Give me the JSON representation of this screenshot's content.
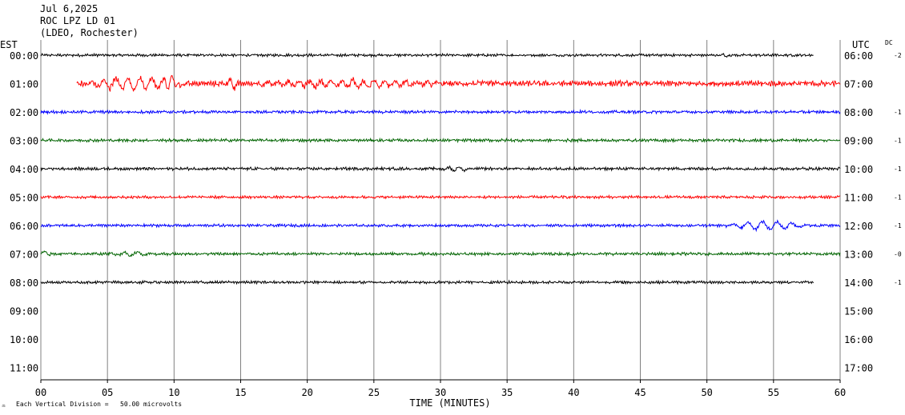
{
  "header": {
    "date": "Jul 6,2025",
    "station": "ROC LPZ LD 01",
    "network": "(LDEO, Rochester)"
  },
  "left_tz": "EST",
  "right_tz": "UTC",
  "dc_label": "DC",
  "footer": {
    "note": "Each Vertical Division =   50.00 microvolts",
    "mark": "♒"
  },
  "colors": [
    "#000000",
    "#ff0000",
    "#0000ff",
    "#006400"
  ],
  "chart_data": {
    "type": "line",
    "title": "",
    "xlabel": "TIME (MINUTES)",
    "xlim": [
      0,
      60
    ],
    "x_ticks": [
      "00",
      "05",
      "10",
      "15",
      "20",
      "25",
      "30",
      "35",
      "40",
      "45",
      "50",
      "55",
      "60"
    ],
    "grid": true,
    "rows": [
      {
        "est": "00:00",
        "utc": "06:00",
        "dc": "-2",
        "color": "#000000",
        "start_min": 0,
        "end_min": 58,
        "amplitude": 1.2,
        "events": [
          {
            "t0": 51,
            "t1": 52,
            "amp": 2.5,
            "period": 0.3
          }
        ]
      },
      {
        "est": "01:00",
        "utc": "07:00",
        "dc": "",
        "color": "#ff0000",
        "start_min": 2.7,
        "end_min": 60,
        "amplitude": 2.5,
        "events": [
          {
            "t0": 2.7,
            "t1": 14.5,
            "amp": 9,
            "period": 0.45
          },
          {
            "t0": 9.3,
            "t1": 10.7,
            "amp": 16,
            "period": 0.4
          },
          {
            "t0": 14,
            "t1": 15,
            "amp": 11,
            "period": 0.35
          },
          {
            "t0": 15,
            "t1": 36,
            "amp": 5,
            "period": 0.4
          }
        ]
      },
      {
        "est": "02:00",
        "utc": "08:00",
        "dc": "-1",
        "color": "#0000ff",
        "start_min": 0,
        "end_min": 60,
        "amplitude": 1.3,
        "events": []
      },
      {
        "est": "03:00",
        "utc": "09:00",
        "dc": "-1",
        "color": "#006400",
        "start_min": 0,
        "end_min": 60,
        "amplitude": 1.3,
        "events": []
      },
      {
        "est": "04:00",
        "utc": "10:00",
        "dc": "-1",
        "color": "#000000",
        "start_min": 0,
        "end_min": 60,
        "amplitude": 1.3,
        "events": [
          {
            "t0": 30,
            "t1": 33,
            "amp": 3,
            "period": 0.4
          }
        ]
      },
      {
        "est": "05:00",
        "utc": "11:00",
        "dc": "-1",
        "color": "#ff0000",
        "start_min": 0,
        "end_min": 60,
        "amplitude": 1.2,
        "events": []
      },
      {
        "est": "06:00",
        "utc": "12:00",
        "dc": "-1",
        "color": "#0000ff",
        "start_min": 0,
        "end_min": 60,
        "amplitude": 1.2,
        "events": [
          {
            "t0": 51,
            "t1": 60,
            "amp": 6,
            "period": 0.55
          }
        ]
      },
      {
        "est": "07:00",
        "utc": "13:00",
        "dc": "-0",
        "color": "#006400",
        "start_min": 0,
        "end_min": 60,
        "amplitude": 1.3,
        "events": [
          {
            "t0": 0,
            "t1": 1,
            "amp": 5,
            "period": 0.5
          },
          {
            "t0": 5,
            "t1": 10,
            "amp": 2.8,
            "period": 0.5
          }
        ]
      },
      {
        "est": "08:00",
        "utc": "14:00",
        "dc": "-1",
        "color": "#000000",
        "start_min": 0,
        "end_min": 58,
        "amplitude": 1.2,
        "events": []
      },
      {
        "est": "09:00",
        "utc": "15:00",
        "dc": "",
        "color": "",
        "start_min": 0,
        "end_min": 0,
        "amplitude": 0,
        "events": []
      },
      {
        "est": "10:00",
        "utc": "16:00",
        "dc": "",
        "color": "",
        "start_min": 0,
        "end_min": 0,
        "amplitude": 0,
        "events": []
      },
      {
        "est": "11:00",
        "utc": "17:00",
        "dc": "",
        "color": "",
        "start_min": 0,
        "end_min": 0,
        "amplitude": 0,
        "events": []
      }
    ]
  }
}
